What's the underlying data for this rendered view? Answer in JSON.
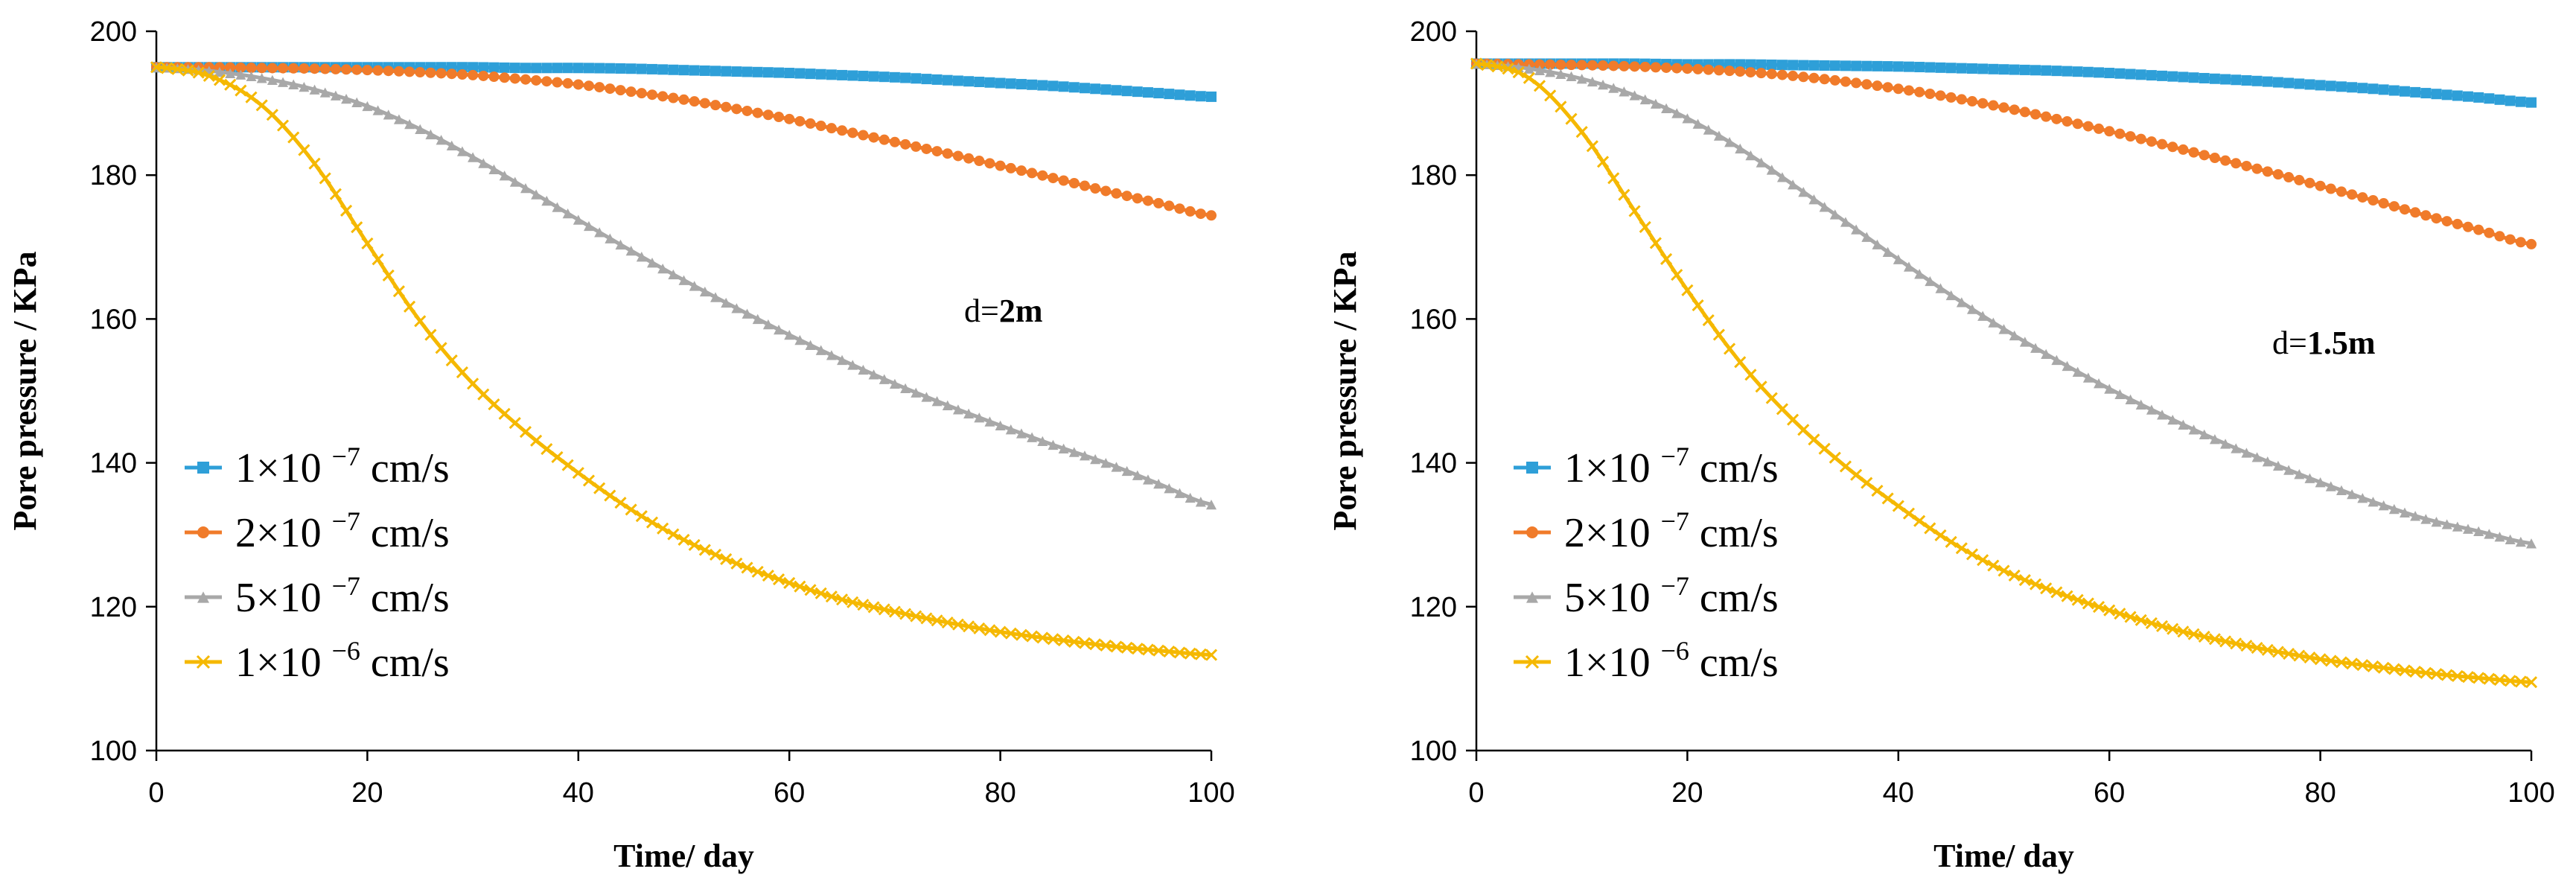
{
  "chart_data": [
    {
      "type": "line",
      "title": "",
      "xlabel": "Time/ day",
      "ylabel": "Pore pressure / KPa",
      "xlim": [
        0,
        100
      ],
      "ylim": [
        100,
        200
      ],
      "xticks": [
        0,
        20,
        40,
        60,
        80,
        100
      ],
      "yticks": [
        100,
        120,
        140,
        160,
        180,
        200
      ],
      "annotation": {
        "prefix": "d=",
        "value": "2m"
      },
      "legend_position": "lower-left",
      "x": [
        0,
        5,
        10,
        15,
        20,
        25,
        30,
        35,
        40,
        45,
        50,
        55,
        60,
        65,
        70,
        75,
        80,
        85,
        90,
        95,
        100
      ],
      "series": [
        {
          "name": "1×10 ⁻⁷ cm/s",
          "label_main": "1×10",
          "label_exp": "−7",
          "label_unit": "cm/s",
          "color": "#2E9FD8",
          "marker": "square",
          "values": [
            195,
            195,
            195,
            195,
            195,
            195,
            195,
            194.9,
            194.9,
            194.8,
            194.6,
            194.4,
            194.2,
            193.9,
            193.6,
            193.2,
            192.8,
            192.4,
            191.9,
            191.4,
            190.9
          ]
        },
        {
          "name": "2×10 ⁻⁷ cm/s",
          "label_main": "2×10",
          "label_exp": "−7",
          "label_unit": "cm/s",
          "color": "#F07B2A",
          "marker": "circle",
          "values": [
            195,
            195,
            194.9,
            194.8,
            194.6,
            194.3,
            193.9,
            193.3,
            192.6,
            191.6,
            190.5,
            189.2,
            187.8,
            186.2,
            184.6,
            183,
            181.3,
            179.6,
            177.8,
            176.1,
            174.4
          ]
        },
        {
          "name": "5×10 ⁻⁷ cm/s",
          "label_main": "5×10",
          "label_exp": "−7",
          "label_unit": "cm/s",
          "color": "#A8A8A8",
          "marker": "triangle",
          "values": [
            195,
            194.5,
            193.5,
            191.9,
            189.6,
            186.4,
            182.5,
            178.2,
            173.8,
            169.5,
            165.4,
            161.5,
            157.8,
            154.3,
            151,
            148,
            145.2,
            142.5,
            140,
            137.1,
            134.2
          ]
        },
        {
          "name": "1×10 ⁻⁶ cm/s",
          "label_main": "1×10",
          "label_exp": "−6",
          "label_unit": "cm/s",
          "color": "#F5B800",
          "marker": "x",
          "values": [
            195,
            193.8,
            189.7,
            181.6,
            170.5,
            159.7,
            151,
            144.3,
            138.6,
            133.5,
            129.3,
            126,
            123.3,
            121,
            119.3,
            117.8,
            116.5,
            115.5,
            114.6,
            113.9,
            113.3
          ]
        }
      ]
    },
    {
      "type": "line",
      "title": "",
      "xlabel": "Time/ day",
      "ylabel": "Pore pressure / KPa",
      "xlim": [
        0,
        100
      ],
      "ylim": [
        100,
        200
      ],
      "xticks": [
        0,
        20,
        40,
        60,
        80,
        100
      ],
      "yticks": [
        100,
        120,
        140,
        160,
        180,
        200
      ],
      "annotation": {
        "prefix": "d=",
        "value": "1.5m"
      },
      "legend_position": "lower-left",
      "x": [
        0,
        5,
        10,
        15,
        20,
        25,
        30,
        35,
        40,
        45,
        50,
        55,
        60,
        65,
        70,
        75,
        80,
        85,
        90,
        95,
        100
      ],
      "series": [
        {
          "name": "1×10 ⁻⁷ cm/s",
          "label_main": "1×10",
          "label_exp": "−7",
          "label_unit": "cm/s",
          "color": "#2E9FD8",
          "marker": "square",
          "values": [
            195.5,
            195.5,
            195.5,
            195.5,
            195.4,
            195.4,
            195.3,
            195.2,
            195.1,
            194.9,
            194.7,
            194.5,
            194.2,
            193.8,
            193.4,
            193,
            192.5,
            192,
            191.4,
            190.8,
            190.1
          ]
        },
        {
          "name": "2×10 ⁻⁷ cm/s",
          "label_main": "2×10",
          "label_exp": "−7",
          "label_unit": "cm/s",
          "color": "#F07B2A",
          "marker": "circle",
          "values": [
            195.5,
            195.4,
            195.3,
            195.1,
            194.8,
            194.4,
            193.8,
            193,
            192,
            190.8,
            189.4,
            187.8,
            186.1,
            184.3,
            182.4,
            180.5,
            178.5,
            176.5,
            174.4,
            172.4,
            170.4
          ]
        },
        {
          "name": "5×10 ⁻⁷ cm/s",
          "label_main": "5×10",
          "label_exp": "−7",
          "label_unit": "cm/s",
          "color": "#A8A8A8",
          "marker": "triangle",
          "values": [
            195.5,
            194.8,
            193.4,
            191.1,
            187.9,
            183.7,
            178.7,
            173.5,
            168.3,
            163.3,
            158.6,
            154.3,
            150.3,
            146.7,
            143.3,
            140.2,
            137.3,
            134.6,
            132.2,
            130.5,
            128.8
          ]
        },
        {
          "name": "1×10 ⁻⁶ cm/s",
          "label_main": "1×10",
          "label_exp": "−6",
          "label_unit": "cm/s",
          "color": "#F5B800",
          "marker": "x",
          "values": [
            195.5,
            193.5,
            186,
            175,
            164,
            154,
            146,
            139.5,
            134,
            129,
            125,
            122,
            119.5,
            117.3,
            115.5,
            114,
            112.7,
            111.7,
            110.8,
            110.1,
            109.5
          ]
        }
      ]
    }
  ]
}
